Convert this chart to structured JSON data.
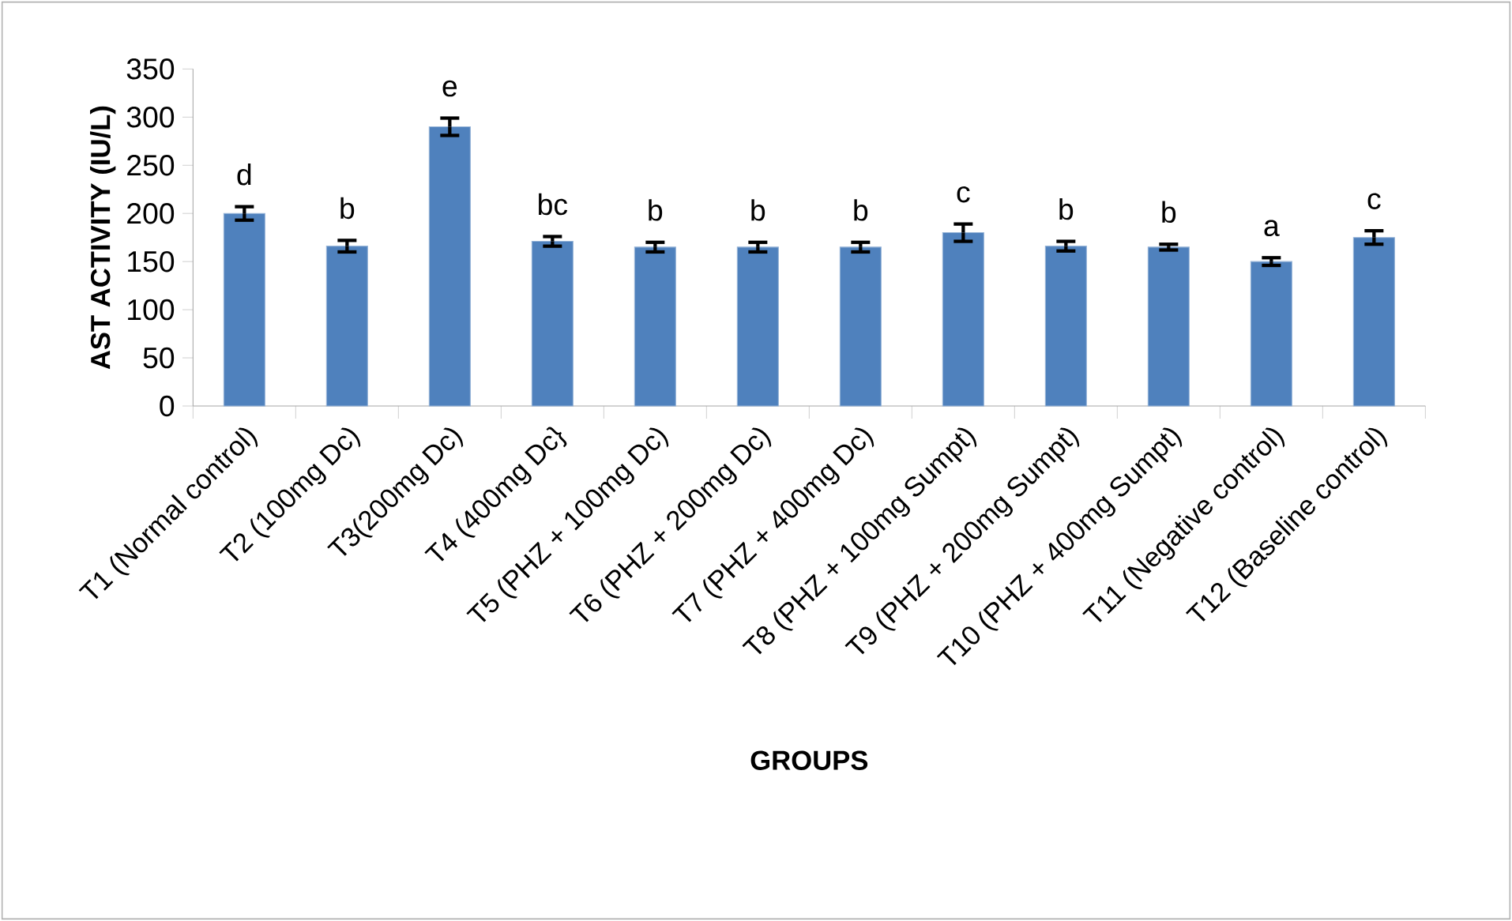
{
  "chart_data": {
    "type": "bar",
    "xlabel": "GROUPS",
    "ylabel": "AST ACTIVITY (IU/L)",
    "categories": [
      "T1  (Normal control)",
      "T2  (100mg Dc)",
      "T3(200mg Dc)",
      "T4 (400mg Dc}",
      "T5 (PHZ + 100mg Dc)",
      "T6 (PHZ + 200mg Dc)",
      "T7 (PHZ + 400mg Dc)",
      "T8  (PHZ + 100mg Sumpt)",
      "T9 (PHZ + 200mg Sumpt)",
      "T10 (PHZ + 400mg Sumpt)",
      "T11 (Negative  control)",
      "T12 (Baseline control)"
    ],
    "values": [
      200,
      166,
      290,
      171,
      165,
      165,
      165,
      180,
      166,
      165,
      150,
      175
    ],
    "errors": [
      7,
      6,
      9,
      5,
      5,
      5,
      5,
      9,
      5,
      3,
      4,
      7
    ],
    "color": "#4f81bd",
    "ylim": [
      0,
      350
    ],
    "yticks": [
      0,
      50,
      100,
      150,
      200,
      250,
      300,
      350
    ],
    "grid": false,
    "annotations": [
      {
        "text": "d",
        "x": "T1  (Normal control)",
        "y": 200
      },
      {
        "text": "b",
        "x": "T2  (100mg Dc)",
        "y": 166
      },
      {
        "text": "e",
        "x": "T3(200mg Dc)",
        "y": 290
      },
      {
        "text": "bc",
        "x": "T4 (400mg Dc}",
        "y": 171
      },
      {
        "text": "b",
        "x": "T5 (PHZ + 100mg Dc)",
        "y": 165
      },
      {
        "text": "b",
        "x": "T6 (PHZ + 200mg Dc)",
        "y": 165
      },
      {
        "text": "b",
        "x": "T7 (PHZ + 400mg Dc)",
        "y": 165
      },
      {
        "text": "c",
        "x": "T8  (PHZ + 100mg Sumpt)",
        "y": 180
      },
      {
        "text": "b",
        "x": "T9 (PHZ + 200mg Sumpt)",
        "y": 166
      },
      {
        "text": "b",
        "x": "T10 (PHZ + 400mg Sumpt)",
        "y": 165
      },
      {
        "text": "a",
        "x": "T11 (Negative  control)",
        "y": 150
      },
      {
        "text": "c",
        "x": "T12 (Baseline control)",
        "y": 175
      }
    ]
  }
}
